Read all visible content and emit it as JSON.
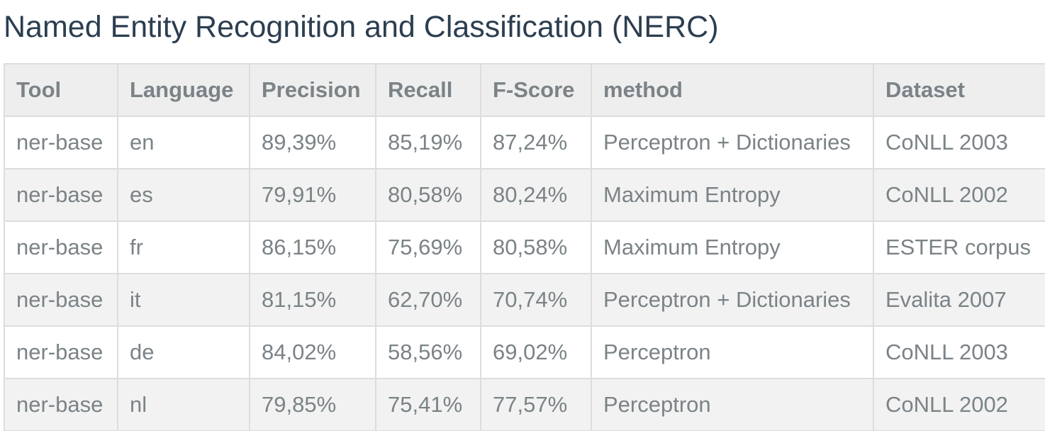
{
  "title": "Named Entity Recognition and Classification (NERC)",
  "table": {
    "headers": [
      "Tool",
      "Language",
      "Precision",
      "Recall",
      "F-Score",
      "method",
      "Dataset"
    ],
    "rows": [
      [
        "ner-base",
        "en",
        "89,39%",
        "85,19%",
        "87,24%",
        "Perceptron + Dictionaries",
        "CoNLL 2003"
      ],
      [
        "ner-base",
        "es",
        "79,91%",
        "80,58%",
        "80,24%",
        "Maximum Entropy",
        "CoNLL 2002"
      ],
      [
        "ner-base",
        "fr",
        "86,15%",
        "75,69%",
        "80,58%",
        "Maximum Entropy",
        "ESTER corpus"
      ],
      [
        "ner-base",
        "it",
        "81,15%",
        "62,70%",
        "70,74%",
        "Perceptron + Dictionaries",
        "Evalita 2007"
      ],
      [
        "ner-base",
        "de",
        "84,02%",
        "58,56%",
        "69,02%",
        "Perceptron",
        "CoNLL 2003"
      ],
      [
        "ner-base",
        "nl",
        "79,85%",
        "75,41%",
        "77,57%",
        "Perceptron",
        "CoNLL 2002"
      ]
    ]
  }
}
